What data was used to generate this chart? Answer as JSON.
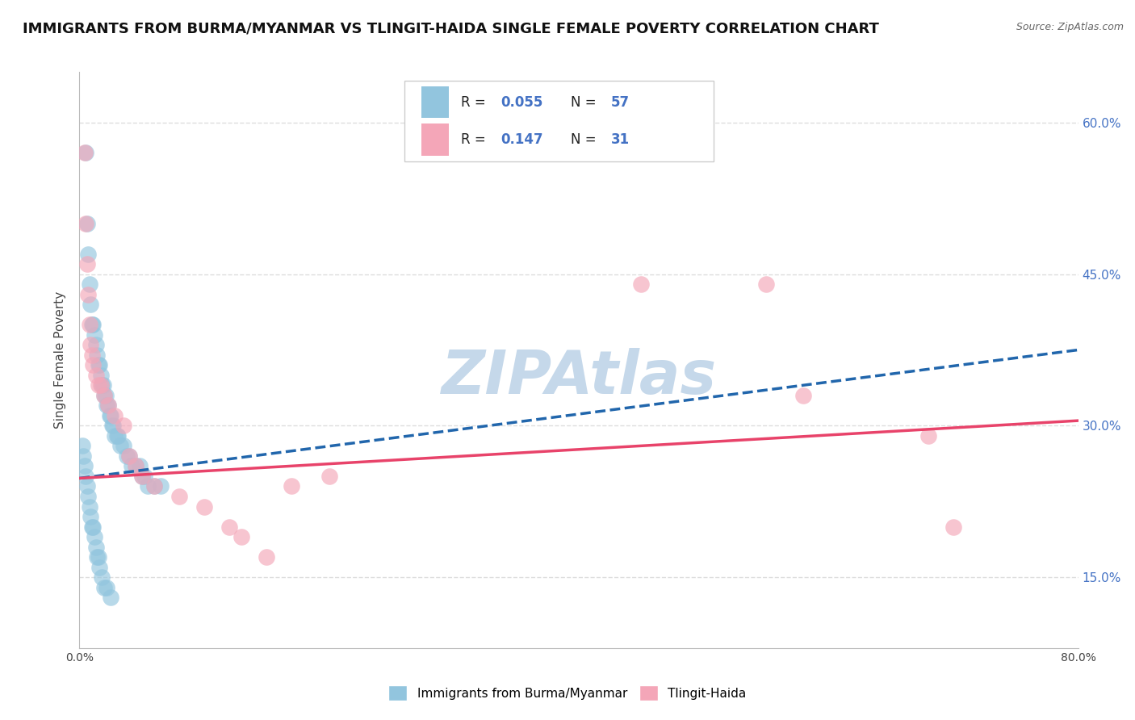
{
  "title": "IMMIGRANTS FROM BURMA/MYANMAR VS TLINGIT-HAIDA SINGLE FEMALE POVERTY CORRELATION CHART",
  "source": "Source: ZipAtlas.com",
  "ylabel": "Single Female Poverty",
  "xlim": [
    0.0,
    0.8
  ],
  "ylim": [
    0.08,
    0.65
  ],
  "ytick_positions": [
    0.15,
    0.3,
    0.45,
    0.6
  ],
  "ytick_labels": [
    "15.0%",
    "30.0%",
    "45.0%",
    "60.0%"
  ],
  "legend_label1": "Immigrants from Burma/Myanmar",
  "legend_label2": "Tlingit-Haida",
  "blue_color": "#92c5de",
  "pink_color": "#f4a6b8",
  "blue_line_color": "#2166ac",
  "pink_line_color": "#e8436a",
  "blue_line_x0": 0.0,
  "blue_line_y0": 0.248,
  "blue_line_x1": 0.8,
  "blue_line_y1": 0.375,
  "pink_line_x0": 0.0,
  "pink_line_y0": 0.248,
  "pink_line_x1": 0.8,
  "pink_line_y1": 0.305,
  "watermark": "ZIPAtlas",
  "watermark_color": "#c5d8ea",
  "blue_scatter_x": [
    0.005,
    0.006,
    0.007,
    0.008,
    0.009,
    0.01,
    0.011,
    0.012,
    0.013,
    0.014,
    0.015,
    0.016,
    0.017,
    0.018,
    0.019,
    0.02,
    0.021,
    0.022,
    0.023,
    0.024,
    0.025,
    0.026,
    0.027,
    0.028,
    0.03,
    0.031,
    0.033,
    0.035,
    0.038,
    0.04,
    0.042,
    0.045,
    0.048,
    0.05,
    0.052,
    0.055,
    0.06,
    0.065,
    0.002,
    0.003,
    0.004,
    0.005,
    0.006,
    0.007,
    0.008,
    0.009,
    0.01,
    0.011,
    0.012,
    0.013,
    0.014,
    0.015,
    0.016,
    0.018,
    0.02,
    0.022,
    0.025
  ],
  "blue_scatter_y": [
    0.57,
    0.5,
    0.47,
    0.44,
    0.42,
    0.4,
    0.4,
    0.39,
    0.38,
    0.37,
    0.36,
    0.36,
    0.35,
    0.34,
    0.34,
    0.33,
    0.33,
    0.32,
    0.32,
    0.31,
    0.31,
    0.3,
    0.3,
    0.29,
    0.29,
    0.29,
    0.28,
    0.28,
    0.27,
    0.27,
    0.26,
    0.26,
    0.26,
    0.25,
    0.25,
    0.24,
    0.24,
    0.24,
    0.28,
    0.27,
    0.26,
    0.25,
    0.24,
    0.23,
    0.22,
    0.21,
    0.2,
    0.2,
    0.19,
    0.18,
    0.17,
    0.17,
    0.16,
    0.15,
    0.14,
    0.14,
    0.13
  ],
  "pink_scatter_x": [
    0.004,
    0.005,
    0.006,
    0.007,
    0.008,
    0.009,
    0.01,
    0.011,
    0.013,
    0.015,
    0.017,
    0.02,
    0.023,
    0.028,
    0.035,
    0.04,
    0.045,
    0.05,
    0.06,
    0.08,
    0.1,
    0.12,
    0.13,
    0.15,
    0.17,
    0.2,
    0.45,
    0.55,
    0.58,
    0.68,
    0.7
  ],
  "pink_scatter_y": [
    0.57,
    0.5,
    0.46,
    0.43,
    0.4,
    0.38,
    0.37,
    0.36,
    0.35,
    0.34,
    0.34,
    0.33,
    0.32,
    0.31,
    0.3,
    0.27,
    0.26,
    0.25,
    0.24,
    0.23,
    0.22,
    0.2,
    0.19,
    0.17,
    0.24,
    0.25,
    0.44,
    0.44,
    0.33,
    0.29,
    0.2
  ],
  "grid_color": "#dddddd",
  "grid_style": "--",
  "background_color": "#ffffff",
  "title_fontsize": 13,
  "axis_label_fontsize": 11,
  "tick_fontsize": 10,
  "legend_fontsize": 12,
  "right_ytick_color": "#4472c4"
}
